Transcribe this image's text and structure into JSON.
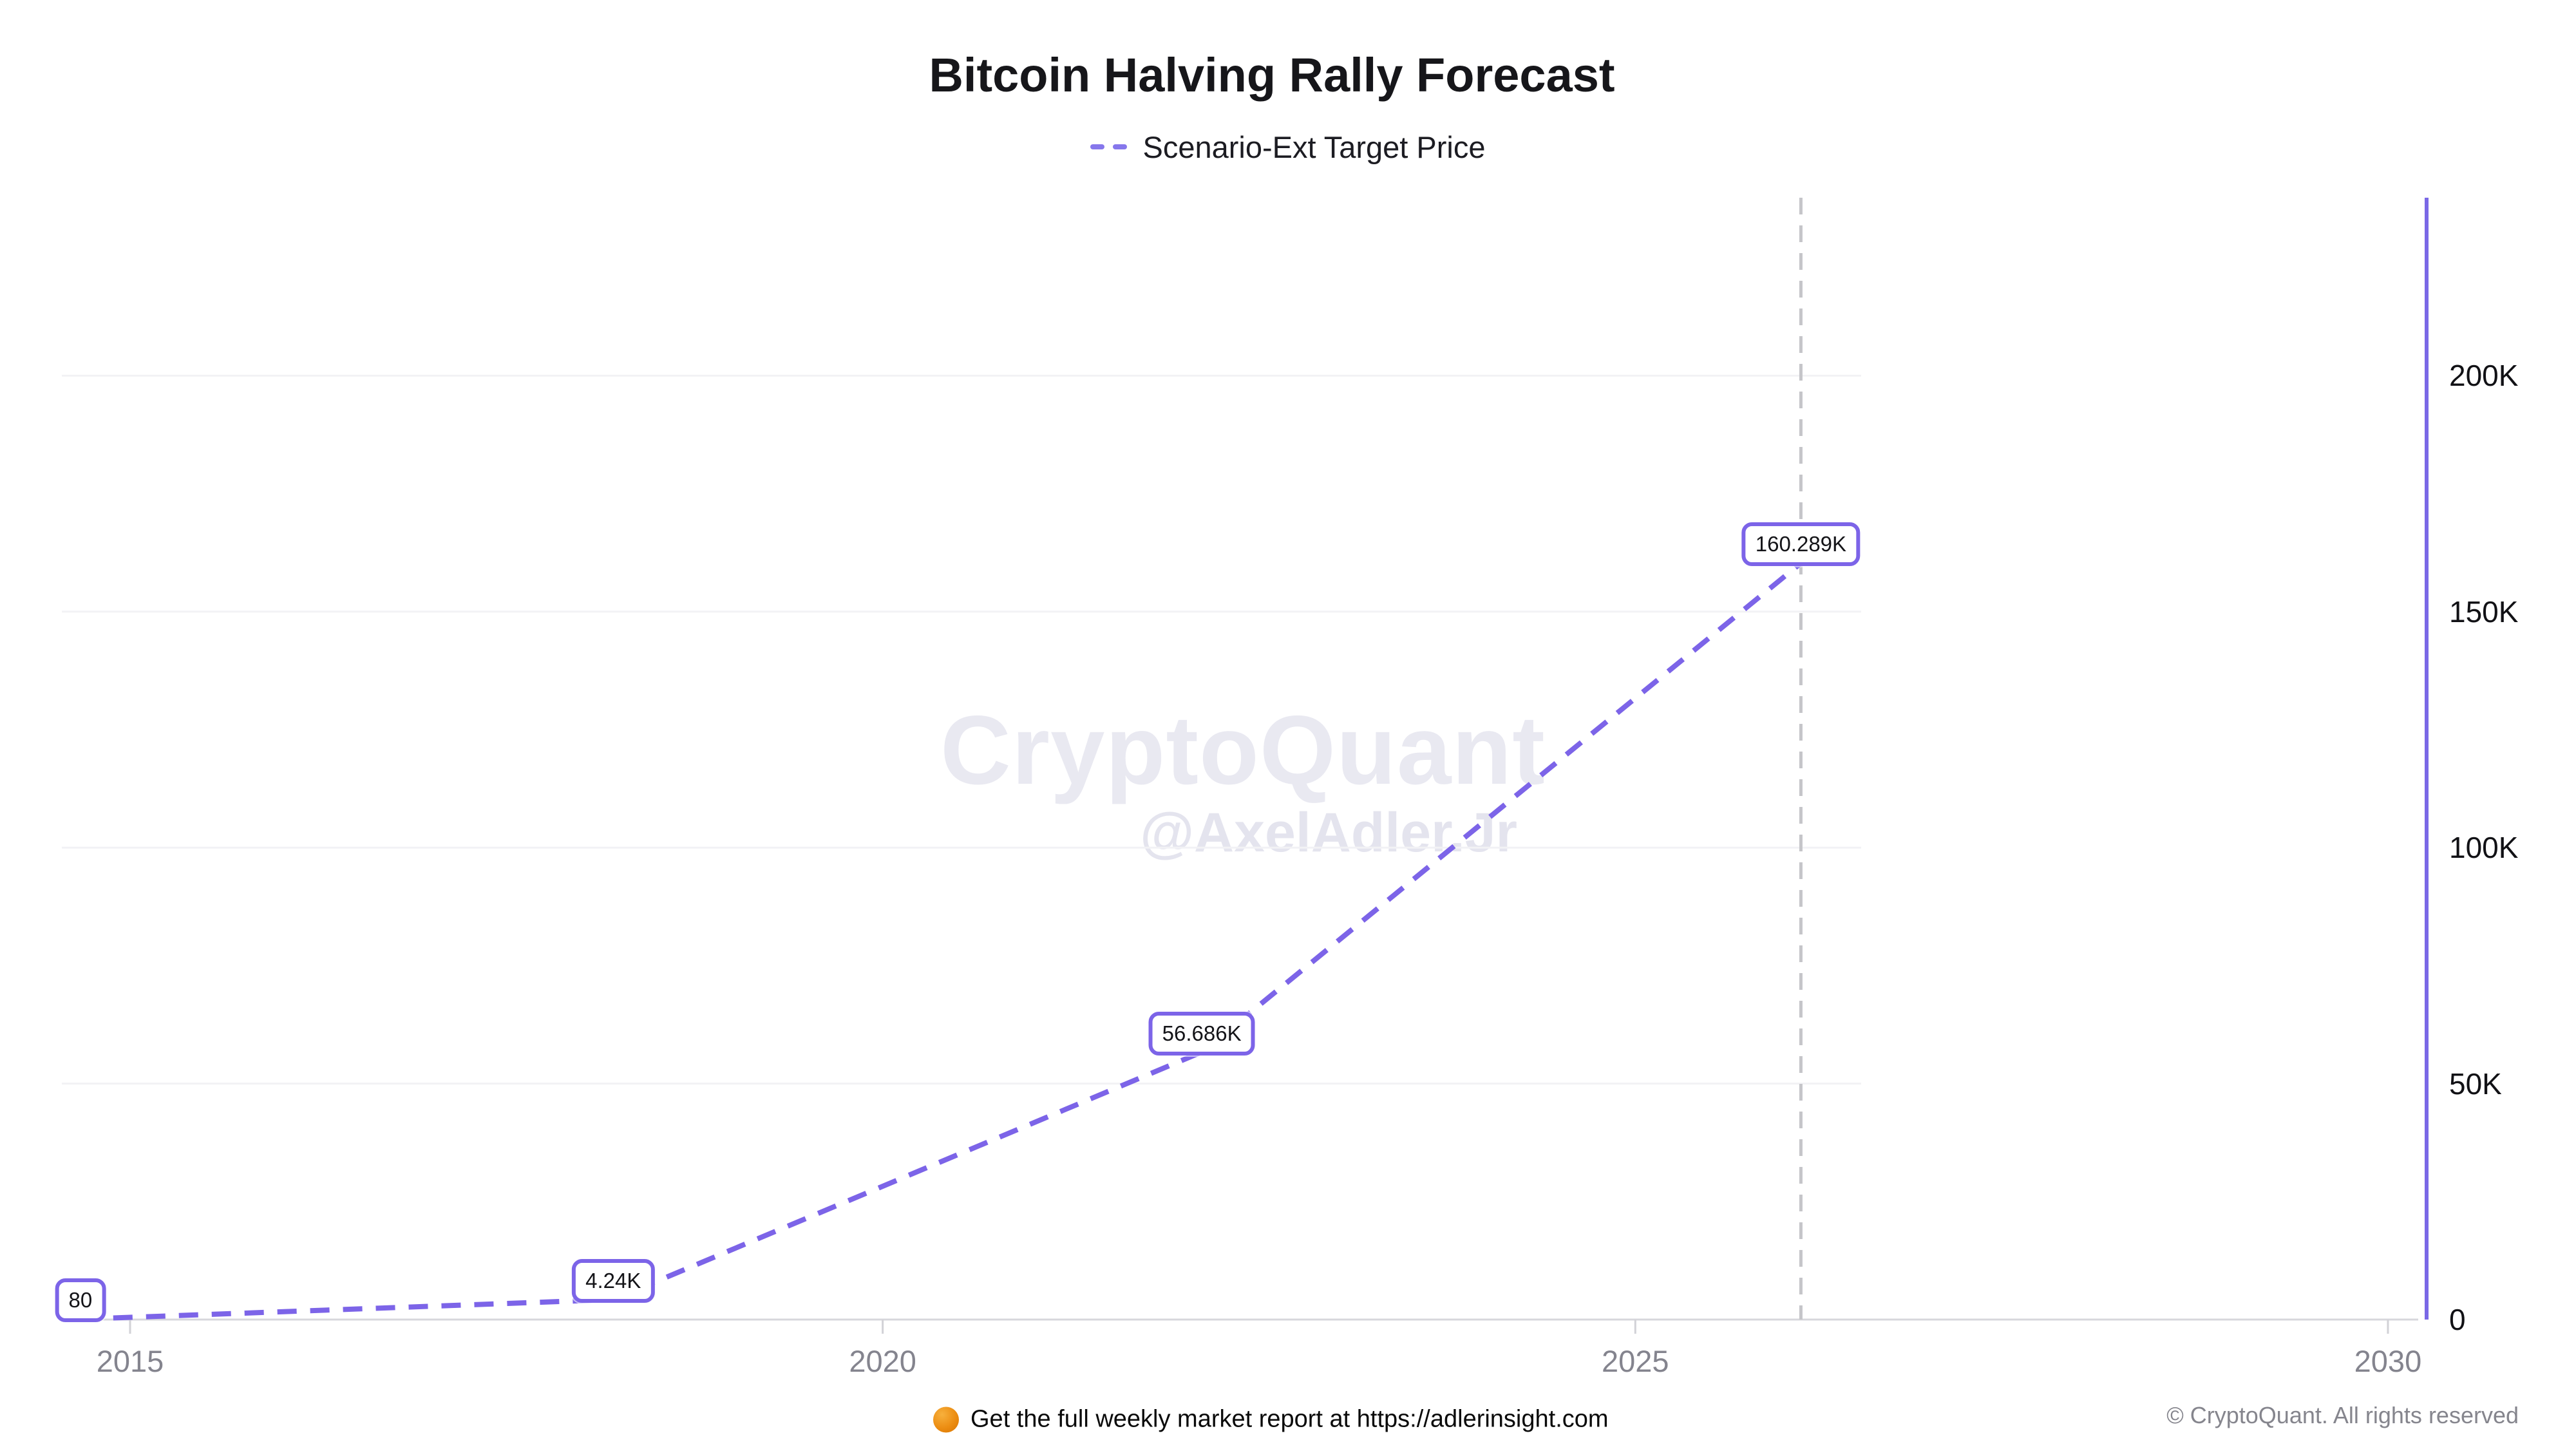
{
  "title": "Bitcoin Halving Rally Forecast",
  "legend": {
    "label": "Scenario-Ext Target Price"
  },
  "watermark": {
    "brand": "CryptoQuant",
    "handle": "@AxelAdler.Jr"
  },
  "footer": {
    "promo": "Get the full weekly market report at https://adlerinsight.com",
    "copyright": "© CryptoQuant. All rights reserved"
  },
  "colors": {
    "accent": "#7c64e8",
    "legend_dash": "#8677ec",
    "right_axis": "#7a68e6",
    "grid": "#f2f2f5",
    "axis_line": "#d7d7dc",
    "tick": "#d2d2d7",
    "marker_line": "#c5c5c9",
    "x_label": "#84848e",
    "y_label": "#111115",
    "promo_dot": "#ec8d12"
  },
  "chart_data": {
    "type": "line",
    "title": "Bitcoin Halving Rally Forecast",
    "xlabel": "",
    "ylabel": "",
    "grid": true,
    "legend_position": "top",
    "xlim": [
      2014.55,
      2030.2
    ],
    "ylim": [
      0,
      237700
    ],
    "x_ticks": [
      {
        "value": 2015,
        "label": "2015"
      },
      {
        "value": 2020,
        "label": "2020"
      },
      {
        "value": 2025,
        "label": "2025"
      },
      {
        "value": 2030,
        "label": "2030"
      }
    ],
    "y_ticks": [
      {
        "value": 0,
        "label": "0"
      },
      {
        "value": 50000,
        "label": "50K"
      },
      {
        "value": 100000,
        "label": "100K"
      },
      {
        "value": 150000,
        "label": "150K"
      },
      {
        "value": 200000,
        "label": "200K"
      }
    ],
    "marker_x": 2026.1,
    "series": [
      {
        "name": "Scenario-Ext Target Price",
        "style": "dashed",
        "points": [
          {
            "x": 2014.67,
            "y": 80,
            "label": "80"
          },
          {
            "x": 2018.21,
            "y": 4240,
            "label": "4.24K"
          },
          {
            "x": 2022.12,
            "y": 56686,
            "label": "56.686K"
          },
          {
            "x": 2026.1,
            "y": 160289,
            "label": "160.289K"
          }
        ]
      }
    ]
  }
}
